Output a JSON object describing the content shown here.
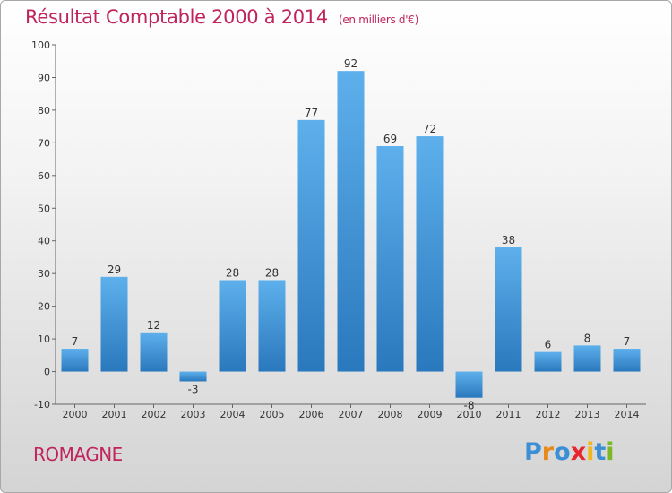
{
  "header": {
    "title": "Résultat Comptable 2000 à 2014",
    "subtitle": "(en milliers d'€)"
  },
  "footer": {
    "commune": "ROMAGNE",
    "logo_letters": [
      {
        "ch": "P",
        "color": "#3b8fd4"
      },
      {
        "ch": "r",
        "color": "#e8891c"
      },
      {
        "ch": "o",
        "color": "#3b8fd4"
      },
      {
        "ch": "x",
        "color": "#e8242c"
      },
      {
        "ch": "i",
        "color": "#f2b71c"
      },
      {
        "ch": "t",
        "color": "#3b8fd4"
      },
      {
        "ch": "i",
        "color": "#7ab828"
      }
    ]
  },
  "colors": {
    "title": "#c0245c",
    "bar_top": "#5eb0ec",
    "bar_bottom": "#2a78bd"
  },
  "chart_data": {
    "type": "bar",
    "title": "Résultat Comptable 2000 à 2014",
    "subtitle": "(en milliers d'€)",
    "categories": [
      "2000",
      "2001",
      "2002",
      "2003",
      "2004",
      "2005",
      "2006",
      "2007",
      "2008",
      "2009",
      "2010",
      "2011",
      "2012",
      "2013",
      "2014"
    ],
    "values": [
      7,
      29,
      12,
      -3,
      28,
      28,
      77,
      92,
      69,
      72,
      -8,
      38,
      6,
      8,
      7
    ],
    "ylim": [
      -10,
      100
    ],
    "yticks": [
      -10,
      0,
      10,
      20,
      30,
      40,
      50,
      60,
      70,
      80,
      90,
      100
    ],
    "grid": false
  }
}
